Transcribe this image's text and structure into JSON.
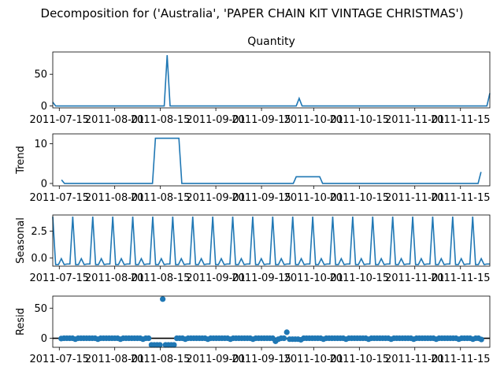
{
  "chart_data": {
    "type": "line",
    "title": "Decomposition for ('Australia', 'PAPER CHAIN KIT VINTAGE CHRISTMAS')",
    "x_ticks": [
      "2011-07-15",
      "2011-08-01",
      "2011-08-15",
      "2011-09-01",
      "2011-09-15",
      "2011-10-01",
      "2011-10-15",
      "2011-11-01",
      "2011-11-15"
    ],
    "x_start": "2011-07-13",
    "x_end": "2011-11-24",
    "panels": [
      {
        "name": "observed",
        "subtitle": "Quantity",
        "ylabel": "",
        "ylim": [
          -3,
          85
        ],
        "yticks": [
          0,
          50
        ],
        "style": "line",
        "values": [
          6,
          0,
          0,
          0,
          0,
          0,
          0,
          0,
          0,
          0,
          0,
          0,
          0,
          0,
          0,
          0,
          0,
          0,
          0,
          0,
          0,
          0,
          0,
          0,
          0,
          0,
          0,
          0,
          0,
          0,
          0,
          0,
          0,
          0,
          0,
          0,
          0,
          0,
          0,
          80,
          0,
          0,
          0,
          0,
          0,
          0,
          0,
          0,
          0,
          0,
          0,
          0,
          0,
          0,
          0,
          0,
          0,
          0,
          0,
          0,
          0,
          0,
          0,
          0,
          0,
          0,
          0,
          0,
          0,
          0,
          0,
          0,
          0,
          0,
          0,
          0,
          0,
          0,
          0,
          0,
          0,
          0,
          0,
          0,
          12,
          0,
          0,
          0,
          0,
          0,
          0,
          0,
          0,
          0,
          0,
          0,
          0,
          0,
          0,
          0,
          0,
          0,
          0,
          0,
          0,
          0,
          0,
          0,
          0,
          0,
          0,
          0,
          0,
          0,
          0,
          0,
          0,
          0,
          0,
          0,
          0,
          0,
          0,
          0,
          0,
          0,
          0,
          0,
          0,
          0,
          0,
          0,
          0,
          0,
          0,
          0,
          0,
          0,
          0,
          0,
          0,
          0,
          0,
          0,
          0,
          0,
          0,
          0,
          0,
          20
        ]
      },
      {
        "name": "trend",
        "subtitle": "",
        "ylabel": "Trend",
        "ylim": [
          -0.6,
          12.5
        ],
        "yticks": [
          0,
          10
        ],
        "style": "line",
        "values": [
          null,
          null,
          null,
          0.9,
          0,
          0,
          0,
          0,
          0,
          0,
          0,
          0,
          0,
          0,
          0,
          0,
          0,
          0,
          0,
          0,
          0,
          0,
          0,
          0,
          0,
          0,
          0,
          0,
          0,
          0,
          0,
          0,
          0,
          0,
          0,
          11.4,
          11.4,
          11.4,
          11.4,
          11.4,
          11.4,
          11.4,
          11.4,
          11.4,
          0,
          0,
          0,
          0,
          0,
          0,
          0,
          0,
          0,
          0,
          0,
          0,
          0,
          0,
          0,
          0,
          0,
          0,
          0,
          0,
          0,
          0,
          0,
          0,
          0,
          0,
          0,
          0,
          0,
          0,
          0,
          0,
          0,
          0,
          0,
          0,
          0,
          0,
          0,
          1.7,
          1.7,
          1.7,
          1.7,
          1.7,
          1.7,
          1.7,
          1.7,
          1.7,
          0,
          0,
          0,
          0,
          0,
          0,
          0,
          0,
          0,
          0,
          0,
          0,
          0,
          0,
          0,
          0,
          0,
          0,
          0,
          0,
          0,
          0,
          0,
          0,
          0,
          0,
          0,
          0,
          0,
          0,
          0,
          0,
          0,
          0,
          0,
          0,
          0,
          0,
          0,
          0,
          0,
          0,
          0,
          0,
          0,
          0,
          0,
          0,
          0,
          0,
          0,
          0,
          0,
          0,
          2.9,
          null,
          null,
          null
        ]
      },
      {
        "name": "seasonal",
        "subtitle": "",
        "ylabel": "Seasonal",
        "ylim": [
          -0.75,
          4.0
        ],
        "yticks": [
          0.0,
          2.5
        ],
        "ytick_labels": [
          "0.0",
          "2.5"
        ],
        "style": "line",
        "pattern": [
          3.85,
          -0.6,
          -0.6,
          -0.05,
          -0.6,
          -0.55,
          -0.55
        ],
        "length": 154
      },
      {
        "name": "resid",
        "subtitle": "",
        "ylabel": "Resid",
        "ylim": [
          -15,
          70
        ],
        "yticks": [
          0,
          50
        ],
        "style": "scatter",
        "zero_line": true,
        "values": [
          null,
          null,
          null,
          -0.5,
          0,
          0,
          0,
          0,
          -1.5,
          0,
          0,
          0,
          0,
          0,
          0,
          0,
          -1.5,
          0,
          0,
          0,
          0,
          0,
          0,
          0,
          -1.5,
          0,
          0,
          0,
          0,
          0,
          0,
          0,
          -1.5,
          0,
          0,
          -11,
          -11,
          -11,
          -11,
          65,
          -11,
          -11,
          -11,
          -11,
          0,
          0,
          0,
          -1.5,
          0,
          0,
          0,
          0,
          0,
          0,
          0,
          -1.5,
          0,
          0,
          0,
          0,
          0,
          0,
          0,
          -1.5,
          0,
          0,
          0,
          0,
          0,
          0,
          0,
          -1.5,
          0,
          0,
          0,
          0,
          0,
          0,
          0,
          -5,
          -1.5,
          0,
          0,
          10,
          -1.5,
          -1.5,
          -1.5,
          -1.5,
          -2.5,
          0,
          0,
          0,
          0,
          0,
          0,
          0,
          -1.5,
          0,
          0,
          0,
          0,
          0,
          0,
          0,
          -1.5,
          0,
          0,
          0,
          0,
          0,
          0,
          0,
          -1.5,
          0,
          0,
          0,
          0,
          0,
          0,
          0,
          -1.5,
          0,
          0,
          0,
          0,
          0,
          0,
          0,
          -1.5,
          0,
          0,
          0,
          0,
          0,
          0,
          0,
          -1.5,
          0,
          0,
          0,
          0,
          0,
          0,
          0,
          -1.5,
          0,
          0,
          0,
          0,
          -1.5,
          0,
          0,
          -2,
          null,
          null,
          null
        ]
      }
    ]
  }
}
